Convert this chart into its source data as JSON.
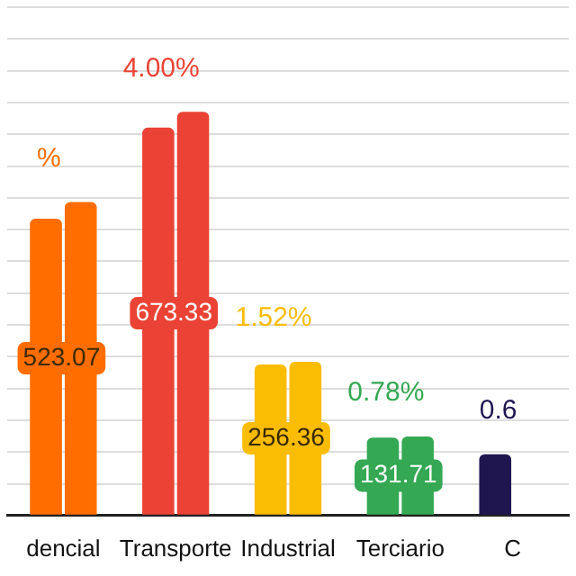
{
  "chart_data": {
    "type": "bar",
    "categories": [
      "dencial",
      "Transporte",
      "Industrial",
      "Terciario",
      "C"
    ],
    "series": [
      {
        "colors": [
          "#ff6d01",
          "#ea4335",
          "#fbbc04",
          "#34a853",
          "#1f1650"
        ],
        "values": [
          495,
          647,
          252,
          130,
          102
        ]
      },
      {
        "colors": [
          "#ff6d01",
          "#ea4335",
          "#fbbc04",
          "#34a853",
          "#1f1650"
        ],
        "values": [
          523.07,
          673.33,
          256.36,
          131.71,
          null
        ],
        "value_labels": [
          "523.07",
          "673.33",
          "256.36",
          "131.71",
          null
        ]
      }
    ],
    "ylim": [
      0,
      848
    ],
    "yticks": [
      {
        "value": 0,
        "label": null
      },
      {
        "value": 53,
        "label": null
      },
      {
        "value": 106,
        "label": null
      },
      {
        "value": 159,
        "label": null
      },
      {
        "value": 212,
        "label": null
      },
      {
        "value": 265,
        "label": null
      },
      {
        "value": 318,
        "label": null
      },
      {
        "value": 371,
        "label": null
      },
      {
        "value": 424,
        "label": null
      },
      {
        "value": 477,
        "label": null
      },
      {
        "value": 530,
        "label": null
      },
      {
        "value": 583,
        "label": null
      },
      {
        "value": 636,
        "label": null
      },
      {
        "value": 689,
        "label": null
      },
      {
        "value": 742,
        "label": null
      },
      {
        "value": 795,
        "label": null
      },
      {
        "value": 848,
        "label": null
      }
    ],
    "annotations": [
      "%",
      "4.00%",
      "1.52%",
      "0.78%",
      "0.6"
    ],
    "grid": "y",
    "legend": false,
    "tick_labels": "x"
  }
}
